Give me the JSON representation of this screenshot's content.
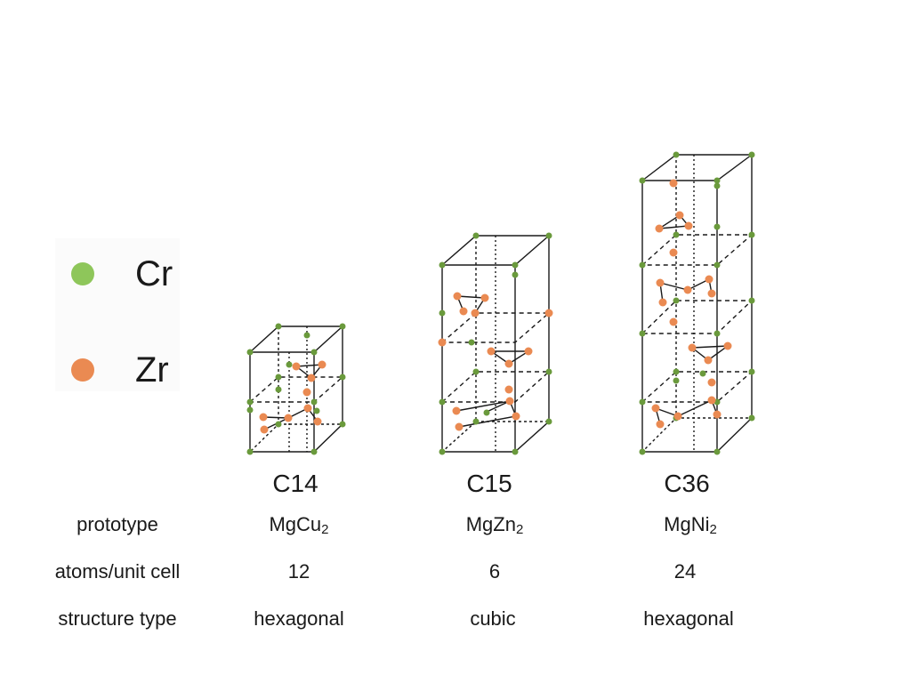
{
  "legend": {
    "items": [
      {
        "label": "Cr",
        "color": "#8ec65a"
      },
      {
        "label": "Zr",
        "color": "#ea8a52"
      }
    ]
  },
  "colors": {
    "cr_atom": "#6a9a3c",
    "zr_atom": "#ea8a52",
    "edge": "#1a1a1a"
  },
  "structures": [
    {
      "name": "C14",
      "prototype_base": "MgCu",
      "prototype_sub": "2",
      "atoms_per_unit_cell": "12",
      "structure_type": "hexagonal"
    },
    {
      "name": "C15",
      "prototype_base": "MgZn",
      "prototype_sub": "2",
      "atoms_per_unit_cell": "6",
      "structure_type": "cubic"
    },
    {
      "name": "C36",
      "prototype_base": "MgNi",
      "prototype_sub": "2",
      "atoms_per_unit_cell": "24",
      "structure_type": "hexagonal"
    }
  ],
  "row_labels": {
    "prototype": "prototype",
    "atoms": "atoms/unit cell",
    "structure": "structure type"
  }
}
